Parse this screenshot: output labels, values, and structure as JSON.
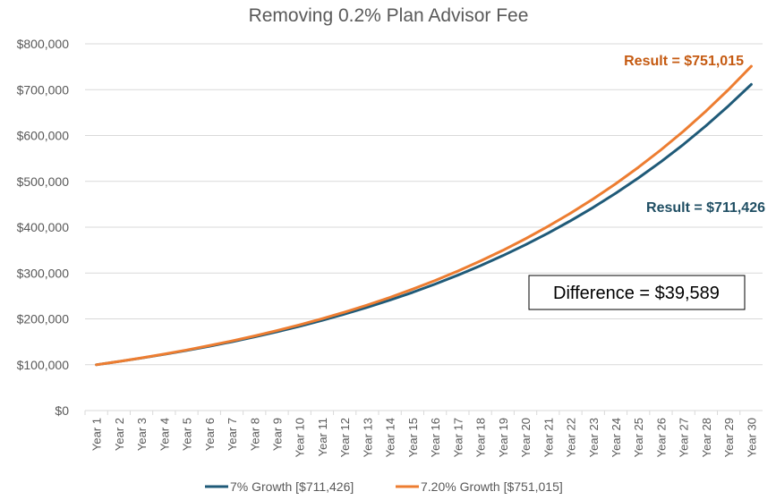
{
  "chart_data": {
    "type": "line",
    "title": "Removing 0.2% Plan Advisor Fee",
    "categories": [
      "Year 1",
      "Year 2",
      "Year 3",
      "Year 4",
      "Year 5",
      "Year 6",
      "Year 7",
      "Year 8",
      "Year 9",
      "Year 10",
      "Year 11",
      "Year 12",
      "Year 13",
      "Year 14",
      "Year 15",
      "Year 16",
      "Year 17",
      "Year 18",
      "Year 19",
      "Year 20",
      "Year 21",
      "Year 22",
      "Year 23",
      "Year 24",
      "Year 25",
      "Year 26",
      "Year 27",
      "Year 28",
      "Year 29",
      "Year 30"
    ],
    "y_ticks": [
      "$0",
      "$100,000",
      "$200,000",
      "$300,000",
      "$400,000",
      "$500,000",
      "$600,000",
      "$700,000",
      "$800,000"
    ],
    "ylim": [
      0,
      800000
    ],
    "grid": true,
    "legend_position": "bottom",
    "series": [
      {
        "name": "7% Growth [$711,426]",
        "color": "#1f5a78",
        "values": [
          100000,
          107000,
          114490,
          122504,
          131080,
          140255,
          150073,
          160578,
          171819,
          183846,
          196715,
          210485,
          225219,
          240985,
          257853,
          275903,
          295216,
          315881,
          337993,
          361652,
          386968,
          414056,
          443040,
          474053,
          507237,
          542743,
          580735,
          621387,
          664884,
          711426
        ]
      },
      {
        "name": "7.20% Growth [$751,015]",
        "color": "#ed7d31",
        "values": [
          100000,
          107200,
          114918,
          123193,
          132063,
          141571,
          151764,
          162691,
          174405,
          186962,
          200423,
          214854,
          230323,
          246907,
          264684,
          283741,
          304171,
          326071,
          349549,
          374716,
          401695,
          430617,
          461621,
          494858,
          530488,
          568683,
          609628,
          653522,
          700576,
          751015
        ]
      }
    ],
    "annotations": {
      "orange_result": "Result = $751,015",
      "blue_result": "Result = $711,426",
      "difference": "Difference = $39,589"
    }
  }
}
